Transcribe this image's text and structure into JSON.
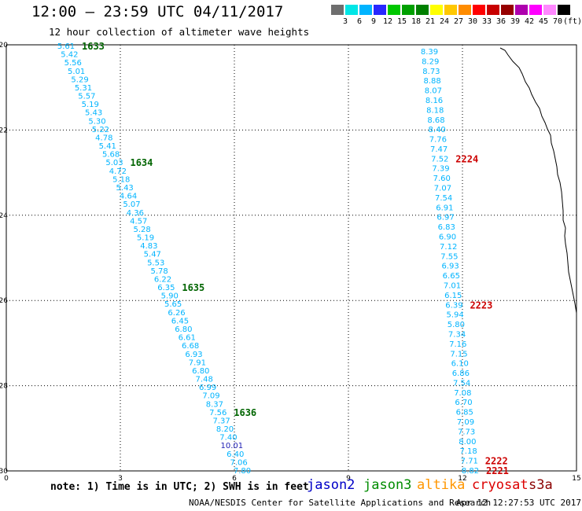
{
  "header": {
    "title": "12:00 — 23:59 UTC 04/11/2017",
    "subtitle": "12 hour collection of altimeter wave heights"
  },
  "legend": {
    "colors": [
      "#6e6e6e",
      "#00e6e6",
      "#00b4ff",
      "#2828ff",
      "#00c800",
      "#00a000",
      "#008000",
      "#ffff00",
      "#ffc800",
      "#ff8c00",
      "#ff0000",
      "#c80000",
      "#960000",
      "#ae00ae",
      "#ff00ff",
      "#ff88ff",
      "#000000"
    ],
    "labels": [
      "3",
      "6",
      "9",
      "12",
      "15",
      "18",
      "21",
      "24",
      "27",
      "30",
      "33",
      "36",
      "39",
      "42",
      "45",
      "70"
    ],
    "unit": "(ft)"
  },
  "axes": {
    "lon_labels": [
      "0",
      "3",
      "6",
      "9",
      "12",
      "15"
    ],
    "lat_labels": [
      "-20",
      "-22",
      "-24",
      "-26",
      "-28",
      "-30"
    ]
  },
  "tracks": [
    {
      "satellite": "jason3",
      "swh_color": "#00b4ff",
      "values": [
        "5.61",
        "5.42",
        "5.56",
        "5.01",
        "5.29",
        "5.31",
        "5.57",
        "5.19",
        "5.43",
        "5.30",
        "5.22",
        "4.78",
        "5.41",
        "5.68",
        "5.03",
        "4.72",
        "5.18",
        "5.43",
        "4.64",
        "5.07",
        "4.36",
        "4.57",
        "5.28",
        "5.19",
        "4.83",
        "5.47",
        "5.53",
        "5.78",
        "6.22",
        "6.35",
        "5.90",
        "5.65",
        "6.26",
        "6.45",
        "6.80",
        "6.61",
        "6.68",
        "6.93",
        "7.91",
        "6.80",
        "7.48",
        "6.99",
        "7.09",
        "8.37",
        "7.56",
        "7.37",
        "8.20",
        "7.40",
        "10.01",
        "6.40",
        "7.06",
        "7.80"
      ],
      "pass_labels": [
        {
          "text": "1633",
          "row": 0
        },
        {
          "text": "1634",
          "row": 14
        },
        {
          "text": "1635",
          "row": 29
        },
        {
          "text": "1636",
          "row": 44
        }
      ]
    },
    {
      "satellite": "cryosat",
      "swh_color": "#00b4ff",
      "values": [
        "8.39",
        "8.29",
        "8.73",
        "8.88",
        "8.07",
        "8.16",
        "8.18",
        "8.68",
        "8.40",
        "7.76",
        "7.47",
        "7.52",
        "7.39",
        "7.60",
        "7.07",
        "7.54",
        "6.91",
        "6.97",
        "6.83",
        "6.90",
        "7.12",
        "7.55",
        "6.93",
        "6.65",
        "7.01",
        "6.15",
        "6.39",
        "5.94",
        "5.80",
        "7.34",
        "7.16",
        "7.15",
        "6.10",
        "6.86",
        "7.54",
        "7.08",
        "6.70",
        "6.85",
        "7.09",
        "7.73",
        "8.00",
        "7.18",
        "7.71",
        "8.82"
      ],
      "pass_labels": [
        {
          "text": "2224",
          "row": 11
        },
        {
          "text": "2223",
          "row": 26
        },
        {
          "text": "2222",
          "row": 42
        },
        {
          "text": "2221",
          "row": 43
        }
      ]
    }
  ],
  "footer": {
    "note": "note: 1) Time is in UTC; 2) SWH is in feet",
    "satellites": [
      {
        "name": "jason2",
        "color": "#0000c8"
      },
      {
        "name": "jason3",
        "color": "#008c00"
      },
      {
        "name": "altika",
        "color": "#ff9600"
      },
      {
        "name": "cryosat",
        "color": "#dc0000"
      },
      {
        "name": "s3a",
        "color": "#8b0000"
      }
    ],
    "credit": "NOAA/NESDIS Center for Satellite Applications and Research",
    "timestamp": "Apr 12 12:27:53 UTC 2017"
  }
}
